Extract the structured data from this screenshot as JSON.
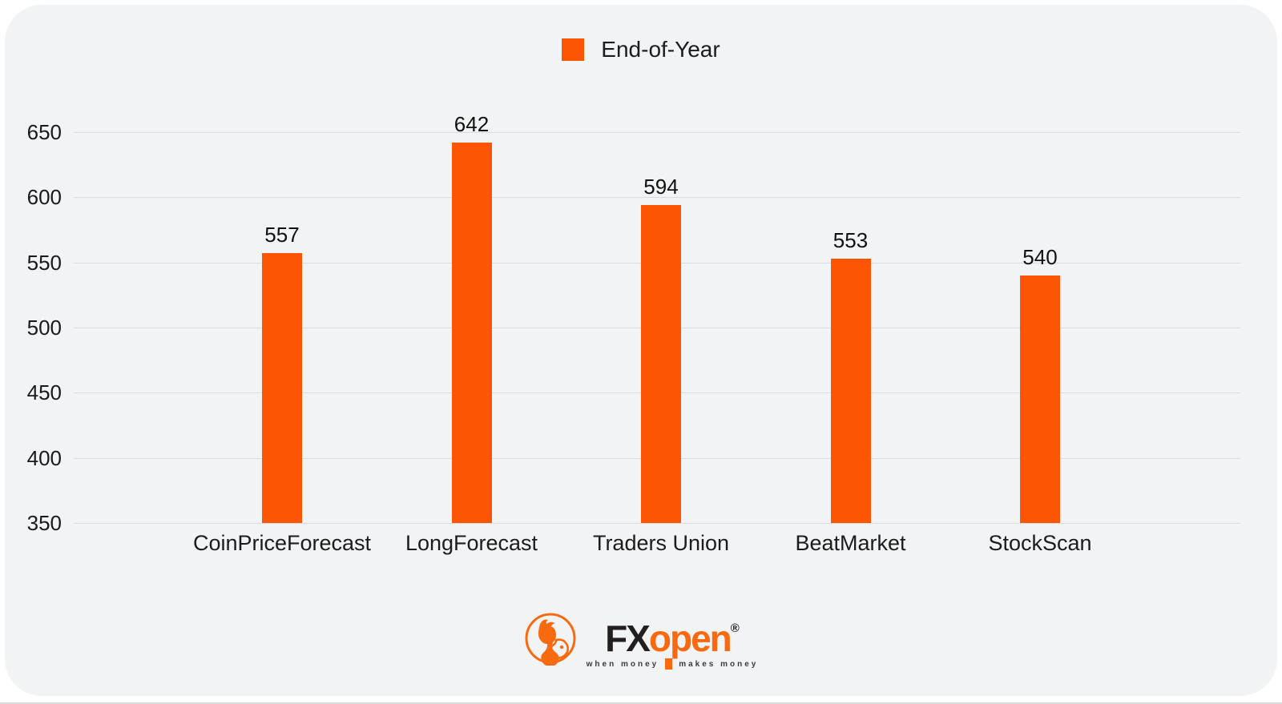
{
  "page": {
    "background": "#ffffff",
    "card_background": "#f2f3f5",
    "gridline_color": "#d9dbde"
  },
  "legend": {
    "label": "End-of-Year",
    "swatch_color": "#fc5605"
  },
  "chart_data": {
    "type": "bar",
    "categories": [
      "CoinPriceForecast",
      "LongForecast",
      "Traders Union",
      "BeatMarket",
      "StockScan"
    ],
    "values": [
      557,
      642,
      594,
      553,
      540
    ],
    "series": [
      {
        "name": "End-of-Year",
        "values": [
          557,
          642,
          594,
          553,
          540
        ]
      }
    ],
    "title": "",
    "xlabel": "",
    "ylabel": "",
    "ylim": [
      350,
      650
    ],
    "yticks": [
      350,
      400,
      450,
      500,
      550,
      600,
      650
    ],
    "grid": true,
    "legend_position": "top-center",
    "bar_color": "#fc5605",
    "value_labels_shown": true
  },
  "footer_logo": {
    "brand_fx": "FX",
    "brand_open": "open",
    "registered_mark": "®",
    "tagline_left": "when money",
    "tagline_right": "makes money",
    "emblem": "bull-and-bear-circle",
    "orange": "#f96a10",
    "dark": "#231f20"
  }
}
